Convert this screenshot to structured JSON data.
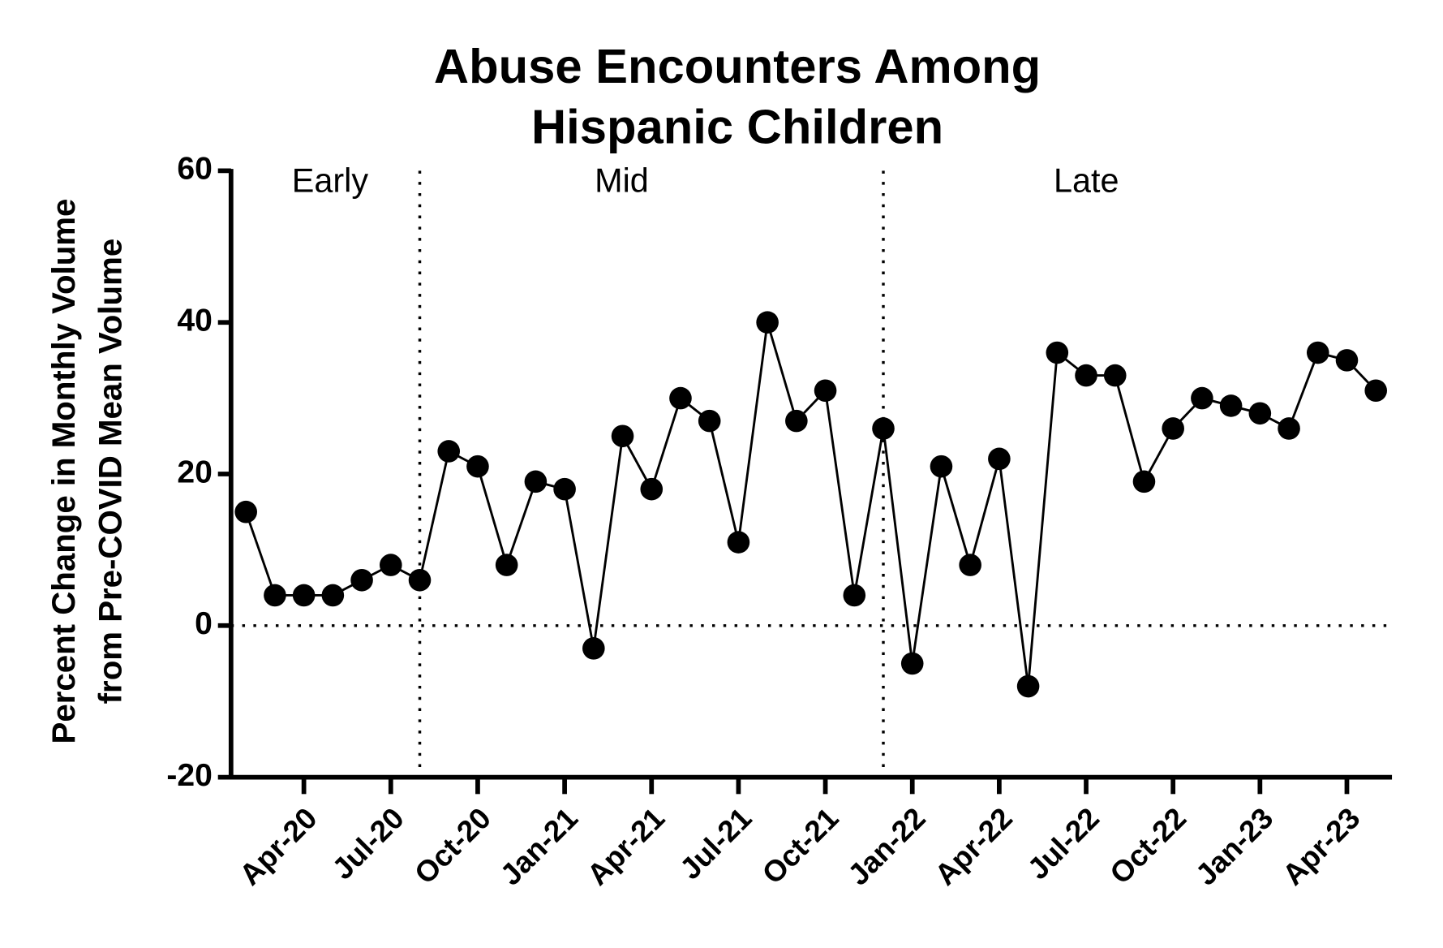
{
  "chart_data": {
    "type": "line",
    "title": [
      "Abuse Encounters Among",
      "Hispanic Children"
    ],
    "y_label": [
      "Percent Change in Monthly Volume",
      "from Pre-COVID Mean Volume"
    ],
    "categories": [
      null,
      null,
      "Apr-20",
      null,
      null,
      "Jul-20",
      null,
      null,
      "Oct-20",
      null,
      null,
      "Jan-21",
      null,
      null,
      "Apr-21",
      null,
      null,
      "Jul-21",
      null,
      null,
      "Oct-21",
      null,
      null,
      "Jan-22",
      null,
      null,
      "Apr-22",
      null,
      null,
      "Jul-22",
      null,
      null,
      "Oct-22",
      null,
      null,
      "Jan-23",
      null,
      null,
      "Apr-23",
      null
    ],
    "values": [
      15,
      4,
      4,
      4,
      6,
      8,
      6,
      23,
      21,
      8,
      19,
      18,
      -3,
      25,
      18,
      30,
      27,
      11,
      40,
      27,
      31,
      4,
      26,
      -5,
      21,
      8,
      22,
      -8,
      36,
      33,
      33,
      19,
      26,
      30,
      29,
      28,
      26,
      36,
      35,
      31
    ],
    "color": "#000000",
    "ylim": [
      -20,
      60
    ],
    "yticks": [
      -20,
      0,
      20,
      40,
      60
    ],
    "reference_line": 0,
    "phases": [
      "Early",
      "Mid",
      "Late"
    ],
    "phase_boundaries": [
      6,
      22
    ]
  }
}
